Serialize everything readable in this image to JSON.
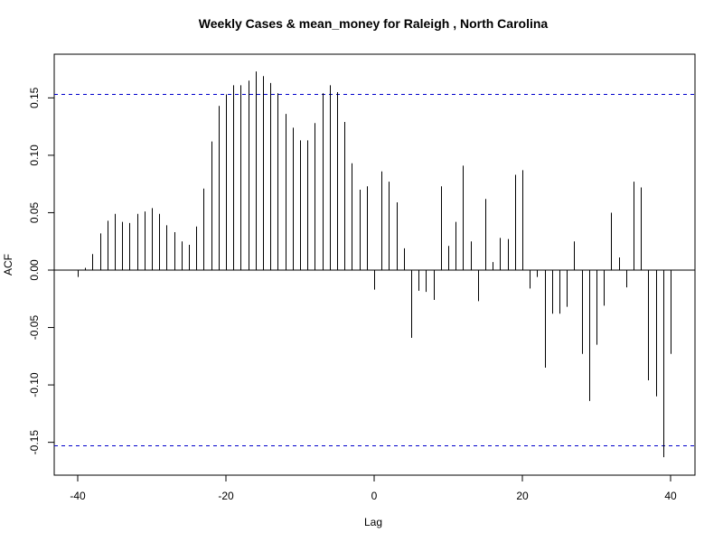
{
  "chart_data": {
    "type": "bar",
    "title": "Weekly Cases & mean_money for Raleigh , North Carolina",
    "xlabel": "Lag",
    "ylabel": "ACF",
    "xlim": [
      -40,
      40
    ],
    "ylim": [
      -0.165,
      0.177
    ],
    "xticks": [
      "-40",
      "-20",
      "0",
      "20",
      "40"
    ],
    "xtick_values": [
      -40,
      -20,
      0,
      20,
      40
    ],
    "yticks": [
      "-0.15",
      "-0.10",
      "-0.05",
      "0.00",
      "0.05",
      "0.10",
      "0.15"
    ],
    "ytick_values": [
      -0.15,
      -0.1,
      -0.05,
      0.0,
      0.05,
      0.1,
      0.15
    ],
    "confidence_limit": 0.153,
    "confidence_color": "#0000cc",
    "bar_color": "#000000",
    "grid": false,
    "lags": [
      -40,
      -39,
      -38,
      -37,
      -36,
      -35,
      -34,
      -33,
      -32,
      -31,
      -30,
      -29,
      -28,
      -27,
      -26,
      -25,
      -24,
      -23,
      -22,
      -21,
      -20,
      -19,
      -18,
      -17,
      -16,
      -15,
      -14,
      -13,
      -12,
      -11,
      -10,
      -9,
      -8,
      -7,
      -6,
      -5,
      -4,
      -3,
      -2,
      -1,
      0,
      1,
      2,
      3,
      4,
      5,
      6,
      7,
      8,
      9,
      10,
      11,
      12,
      13,
      14,
      15,
      16,
      17,
      18,
      19,
      20,
      21,
      22,
      23,
      24,
      25,
      26,
      27,
      28,
      29,
      30,
      31,
      32,
      33,
      34,
      35,
      36,
      37,
      38,
      39,
      40
    ],
    "values": [
      -0.006,
      0.002,
      0.014,
      0.032,
      0.043,
      0.049,
      0.042,
      0.041,
      0.049,
      0.051,
      0.054,
      0.049,
      0.039,
      0.033,
      0.025,
      0.022,
      0.038,
      0.071,
      0.112,
      0.143,
      0.153,
      0.161,
      0.161,
      0.165,
      0.173,
      0.169,
      0.163,
      0.154,
      0.136,
      0.124,
      0.113,
      0.113,
      0.128,
      0.154,
      0.161,
      0.155,
      0.129,
      0.093,
      0.07,
      0.073,
      -0.017,
      0.086,
      0.077,
      0.059,
      0.019,
      -0.059,
      -0.018,
      -0.019,
      -0.026,
      0.073,
      0.021,
      0.042,
      0.091,
      0.025,
      -0.027,
      0.062,
      0.007,
      0.028,
      0.027,
      0.083,
      0.087,
      -0.016,
      -0.006,
      -0.085,
      -0.038,
      -0.038,
      -0.032,
      0.025,
      -0.073,
      -0.114,
      -0.065,
      -0.031,
      0.05,
      0.011,
      -0.015,
      0.077,
      0.072,
      -0.096,
      -0.11,
      -0.163,
      -0.073
    ]
  }
}
